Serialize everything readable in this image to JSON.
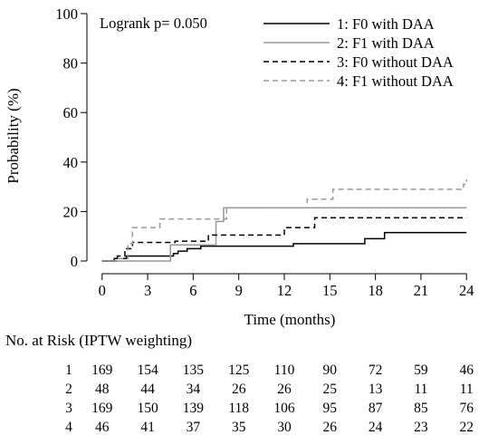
{
  "chart_data": {
    "type": "line",
    "subtype": "kaplan-meier cumulative incidence (step)",
    "ylabel": "Probability (%)",
    "xlabel": "Time (months)",
    "xlim": [
      -1,
      25
    ],
    "ylim": [
      0,
      100
    ],
    "xticks": [
      0,
      3,
      6,
      9,
      12,
      15,
      18,
      21,
      24
    ],
    "yticks": [
      0,
      20,
      40,
      60,
      80,
      100
    ],
    "grid": false,
    "legend_position": "top-right",
    "annotation": "Logrank p= 0.050",
    "series": [
      {
        "name": "1: F0 with DAA",
        "line_style": "solid",
        "color": "#000000",
        "steps": [
          [
            0,
            0
          ],
          [
            0.8,
            1
          ],
          [
            1.6,
            2
          ],
          [
            4.7,
            3
          ],
          [
            5,
            4
          ],
          [
            5.6,
            5
          ],
          [
            6.5,
            6
          ],
          [
            12.6,
            7
          ],
          [
            17.3,
            9
          ],
          [
            18.6,
            11.5
          ],
          [
            24,
            11.5
          ]
        ]
      },
      {
        "name": "2: F1 with DAA",
        "line_style": "solid",
        "color": "#999999",
        "steps": [
          [
            0,
            0
          ],
          [
            4.5,
            6.5
          ],
          [
            7.5,
            16
          ],
          [
            8,
            21.5
          ],
          [
            24,
            21.5
          ]
        ]
      },
      {
        "name": "3: F0 without DAA",
        "line_style": "dashed",
        "color": "#000000",
        "steps": [
          [
            0,
            0
          ],
          [
            1,
            2
          ],
          [
            1.5,
            5
          ],
          [
            2,
            7.5
          ],
          [
            4.8,
            8
          ],
          [
            7,
            10.5
          ],
          [
            12,
            13.5
          ],
          [
            14,
            17.5
          ],
          [
            24,
            17.5
          ]
        ]
      },
      {
        "name": "4: F1 without DAA",
        "line_style": "dashed",
        "color": "#999999",
        "steps": [
          [
            0,
            0
          ],
          [
            0.9,
            1
          ],
          [
            1.7,
            7
          ],
          [
            2,
            13.5
          ],
          [
            3.8,
            17
          ],
          [
            8.2,
            21.5
          ],
          [
            13.5,
            25
          ],
          [
            15.2,
            29
          ],
          [
            23.8,
            31
          ],
          [
            24,
            33
          ]
        ]
      }
    ]
  },
  "risk_table": {
    "title": "No. at Risk (IPTW weighting)",
    "rows": [
      {
        "label": "1",
        "values": [
          "169",
          "154",
          "135",
          "125",
          "110",
          "90",
          "72",
          "59",
          "46"
        ]
      },
      {
        "label": "2",
        "values": [
          "48",
          "44",
          "34",
          "26",
          "26",
          "25",
          "13",
          "11",
          "11"
        ]
      },
      {
        "label": "3",
        "values": [
          "169",
          "150",
          "139",
          "118",
          "106",
          "95",
          "87",
          "85",
          "76"
        ]
      },
      {
        "label": "4",
        "values": [
          "46",
          "41",
          "37",
          "35",
          "30",
          "26",
          "24",
          "23",
          "22"
        ]
      }
    ]
  }
}
